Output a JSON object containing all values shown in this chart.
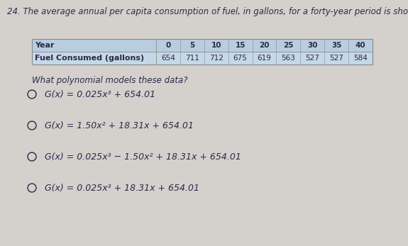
{
  "question_number": "24.",
  "question_text": "The average annual per capita consumption of fuel, in gallons, for a forty-year period is shown.",
  "table_header_label": "Year",
  "table_years": [
    "0",
    "5",
    "10",
    "15",
    "20",
    "25",
    "30",
    "35",
    "40"
  ],
  "table_row_label": "Fuel Consumed (gallons)",
  "table_values": [
    "654",
    "711",
    "712",
    "675",
    "619",
    "563",
    "527",
    "527",
    "584"
  ],
  "sub_question": "What polynomial models these data?",
  "options": [
    "G(x) = 0.025x³ + 654.01",
    "G(x) = 1.50x² + 18.31x + 654.01",
    "G(x) = 0.025x³ − 1.50x² + 18.31x + 654.01",
    "G(x) = 0.025x³ + 18.31x + 654.01"
  ],
  "bg_color": "#d4d0cc",
  "table_header_bg": "#b8cde0",
  "table_row_bg": "#c5d8e8",
  "text_color": "#2a2a4a",
  "table_border_color": "#888888",
  "font_size_question": 8.5,
  "font_size_table_label": 8.0,
  "font_size_table_years": 7.5,
  "font_size_table_values": 7.5,
  "font_size_sub": 8.5,
  "font_size_options": 9.0
}
